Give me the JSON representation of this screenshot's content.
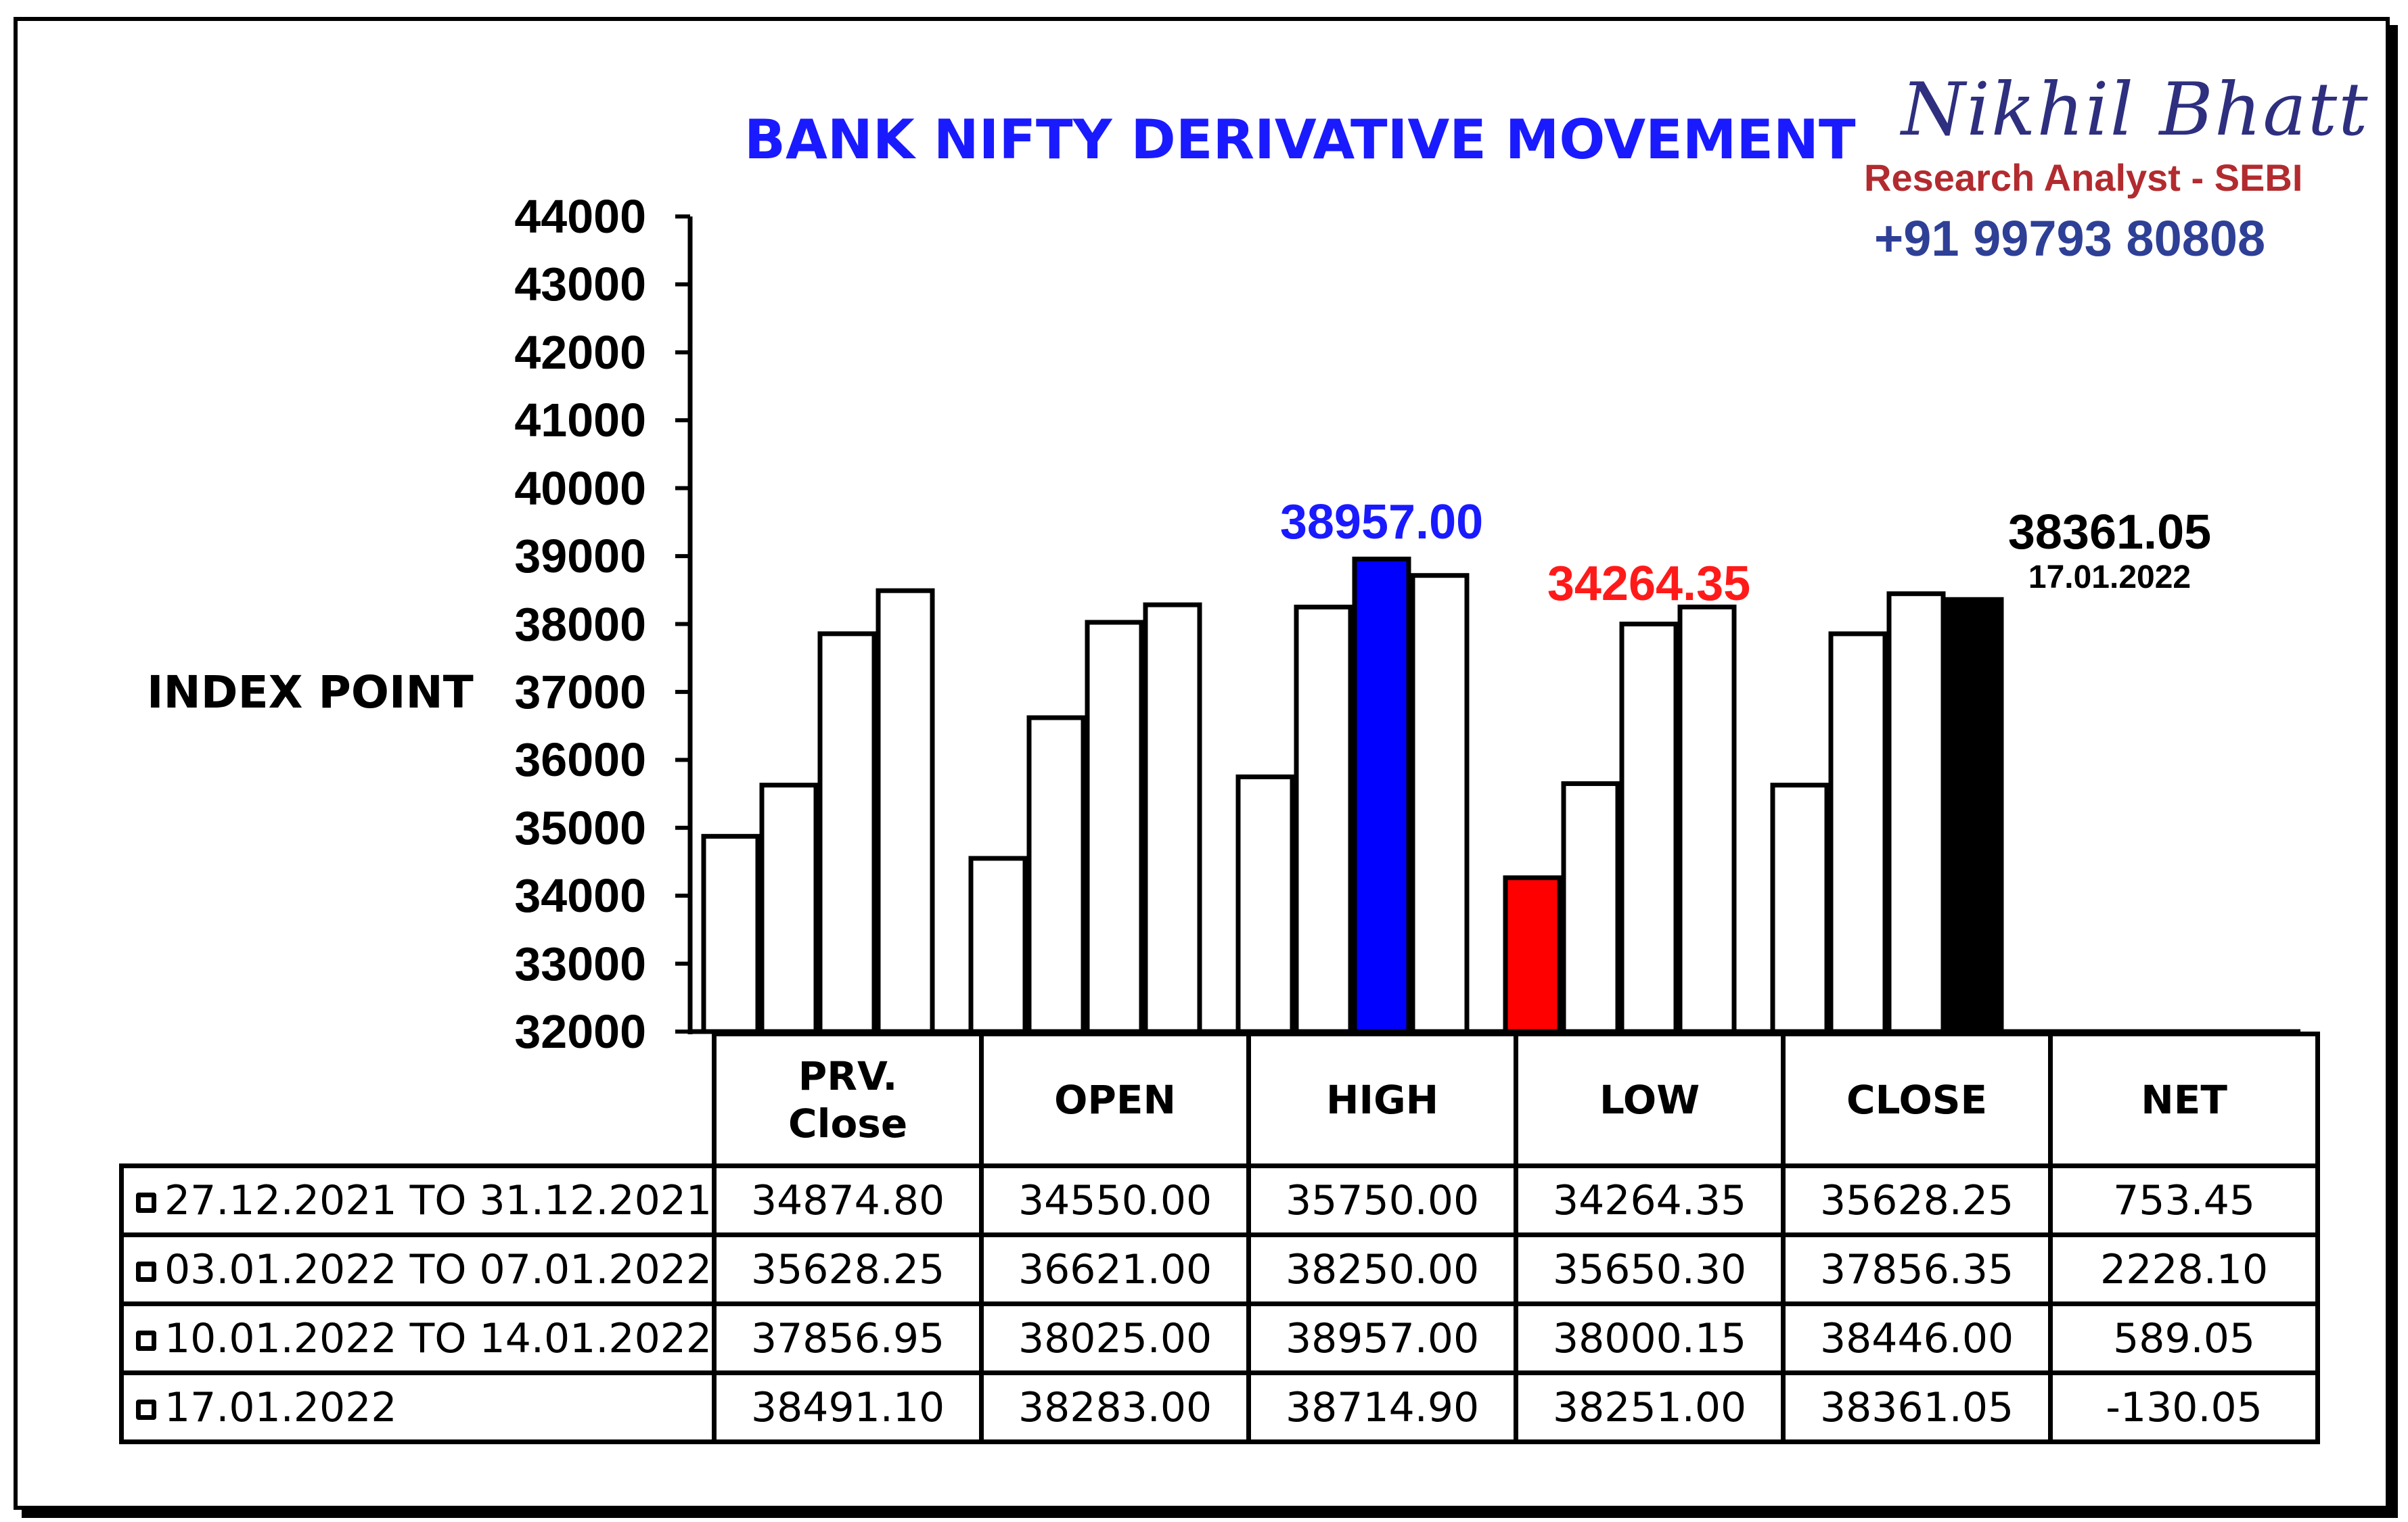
{
  "chart_data": {
    "type": "bar",
    "title": "BANK NIFTY DERIVATIVE MOVEMENT",
    "ylabel": "INDEX POINT",
    "ylim": [
      32000,
      44000
    ],
    "yticks": [
      32000,
      33000,
      34000,
      35000,
      36000,
      37000,
      38000,
      39000,
      40000,
      41000,
      42000,
      43000,
      44000
    ],
    "categories": [
      "PRV.\nClose",
      "OPEN",
      "HIGH",
      "LOW",
      "CLOSE"
    ],
    "series": [
      {
        "name": "27.12.2021 TO 31.12.2021",
        "values": [
          34874.8,
          34550.0,
          35750.0,
          34264.35,
          35628.25
        ]
      },
      {
        "name": "03.01.2022 TO 07.01.2022",
        "values": [
          35628.25,
          36621.0,
          38250.0,
          35650.3,
          37856.35
        ]
      },
      {
        "name": "10.01.2022 TO 14.01.2022",
        "values": [
          37856.95,
          38025.0,
          38957.0,
          38000.15,
          38446.0
        ]
      },
      {
        "name": "17.01.2022",
        "values": [
          38491.1,
          38283.0,
          38714.9,
          38251.0,
          38361.05
        ]
      }
    ],
    "highlights": [
      {
        "category": "HIGH",
        "series": "10.01.2022 TO 14.01.2022",
        "color": "#0000ff"
      },
      {
        "category": "LOW",
        "series": "27.12.2021 TO 31.12.2021",
        "color": "#ff0000"
      },
      {
        "category": "CLOSE",
        "series": "17.01.2022",
        "color": "#000000"
      }
    ],
    "annotations": {
      "high": {
        "text": "38957.00",
        "color": "#1a1aff"
      },
      "low": {
        "text": "34264.35",
        "color": "#ff1a1a"
      },
      "close": {
        "text": "38361.05",
        "sub": "17.01.2022",
        "color": "#000000"
      }
    },
    "grid": false,
    "legend": "table-below"
  },
  "table": {
    "header_line1": [
      "PRV.",
      "OPEN",
      "HIGH",
      "LOW",
      "CLOSE",
      "NET"
    ],
    "header_line2": [
      "Close",
      "",
      "",
      "",
      "",
      ""
    ],
    "rows": [
      {
        "label": "27.12.2021 TO 31.12.2021",
        "cells": [
          "34874.80",
          "34550.00",
          "35750.00",
          "34264.35",
          "35628.25",
          "753.45"
        ]
      },
      {
        "label": "03.01.2022 TO 07.01.2022",
        "cells": [
          "35628.25",
          "36621.00",
          "38250.00",
          "35650.30",
          "37856.35",
          "2228.10"
        ]
      },
      {
        "label": "10.01.2022 TO 14.01.2022",
        "cells": [
          "37856.95",
          "38025.00",
          "38957.00",
          "38000.15",
          "38446.00",
          "589.05"
        ]
      },
      {
        "label": "17.01.2022",
        "cells": [
          "38491.10",
          "38283.00",
          "38714.90",
          "38251.00",
          "38361.05",
          "-130.05"
        ]
      }
    ]
  },
  "brand": {
    "name": "Nikhil Bhatt",
    "role": "Research Analyst - SEBI",
    "phone": "+91 99793 80808"
  }
}
